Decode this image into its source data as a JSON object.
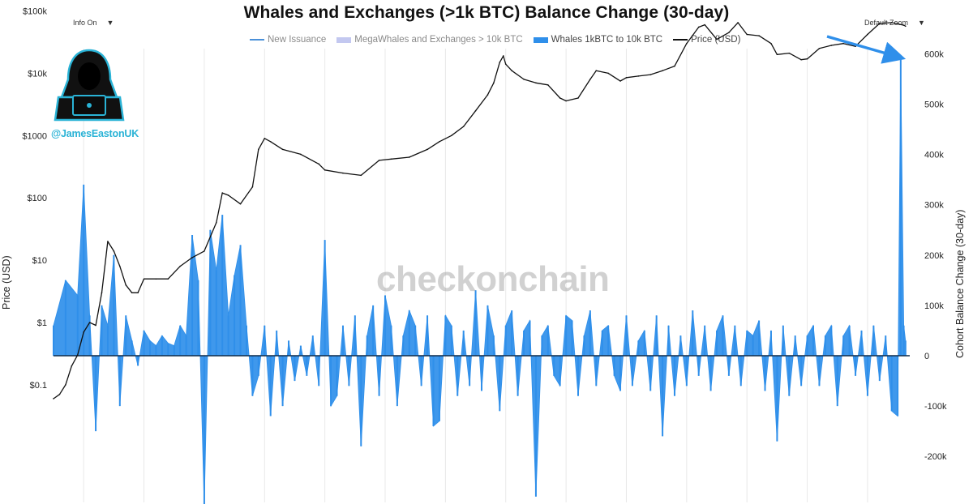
{
  "controls": {
    "info_label": "Info On",
    "zoom_label": "Default Zoom",
    "caret": "▼"
  },
  "chart_data": {
    "type": "area",
    "title": "Whales and Exchanges (>1k BTC) Balance Change (30-day)",
    "ylabel_left": "Price (USD)",
    "ylabel_right": "Cohort Balance Change (30-day)",
    "left_axis": {
      "scale": "log",
      "range": [
        0.04,
        500000
      ],
      "ticks": [
        {
          "label": "$0.1",
          "value": 0.1
        },
        {
          "label": "$1",
          "value": 1
        },
        {
          "label": "$10",
          "value": 10
        },
        {
          "label": "$100",
          "value": 100
        },
        {
          "label": "$1000",
          "value": 1000
        },
        {
          "label": "$10k",
          "value": 10000
        },
        {
          "label": "$100k",
          "value": 100000
        }
      ]
    },
    "right_axis": {
      "scale": "linear",
      "range": [
        -290000,
        610000
      ],
      "ticks": [
        {
          "label": "600k",
          "value": 600000
        },
        {
          "label": "500k",
          "value": 500000
        },
        {
          "label": "400k",
          "value": 400000
        },
        {
          "label": "300k",
          "value": 300000
        },
        {
          "label": "200k",
          "value": 200000
        },
        {
          "label": "100k",
          "value": 100000
        },
        {
          "label": "0",
          "value": 0
        },
        {
          "label": "-100k",
          "value": -100000
        },
        {
          "label": "-200k",
          "value": -200000
        }
      ]
    },
    "x_range": [
      2010.5,
      2024.7
    ],
    "grid": "vertical",
    "legend_position": "top-center",
    "legend": [
      {
        "name": "New Issuance",
        "color": "#4a90d9",
        "style": "line",
        "visible": false
      },
      {
        "name": "MegaWhales and Exchanges > 10k BTC",
        "color": "#c3c8f0",
        "style": "line",
        "visible": false
      },
      {
        "name": "Whales 1kBTC to 10k BTC",
        "color": "#2f8fea",
        "style": "area",
        "visible": true
      },
      {
        "name": "Price (USD)",
        "color": "#111111",
        "style": "line",
        "visible": true
      }
    ],
    "series": [
      {
        "name": "Whales 1kBTC to 10k BTC",
        "axis": "right",
        "color": "#2f8fea",
        "x": [
          2010.5,
          2010.7,
          2010.9,
          2011.0,
          2011.1,
          2011.2,
          2011.3,
          2011.4,
          2011.5,
          2011.6,
          2011.7,
          2011.8,
          2011.9,
          2012.0,
          2012.1,
          2012.2,
          2012.3,
          2012.4,
          2012.5,
          2012.6,
          2012.7,
          2012.8,
          2012.9,
          2013.0,
          2013.1,
          2013.2,
          2013.3,
          2013.4,
          2013.5,
          2013.6,
          2013.7,
          2013.8,
          2013.9,
          2014.0,
          2014.1,
          2014.2,
          2014.3,
          2014.4,
          2014.5,
          2014.6,
          2014.7,
          2014.8,
          2014.9,
          2015.0,
          2015.1,
          2015.2,
          2015.3,
          2015.4,
          2015.5,
          2015.6,
          2015.7,
          2015.8,
          2015.9,
          2016.0,
          2016.1,
          2016.2,
          2016.3,
          2016.4,
          2016.5,
          2016.6,
          2016.7,
          2016.8,
          2016.9,
          2017.0,
          2017.1,
          2017.2,
          2017.3,
          2017.4,
          2017.5,
          2017.6,
          2017.7,
          2017.8,
          2017.9,
          2018.0,
          2018.1,
          2018.2,
          2018.3,
          2018.4,
          2018.5,
          2018.6,
          2018.7,
          2018.8,
          2018.9,
          2019.0,
          2019.1,
          2019.2,
          2019.3,
          2019.4,
          2019.5,
          2019.6,
          2019.7,
          2019.8,
          2019.9,
          2020.0,
          2020.1,
          2020.2,
          2020.3,
          2020.4,
          2020.5,
          2020.6,
          2020.7,
          2020.8,
          2020.9,
          2021.0,
          2021.1,
          2021.2,
          2021.3,
          2021.4,
          2021.5,
          2021.6,
          2021.7,
          2021.8,
          2021.9,
          2022.0,
          2022.1,
          2022.2,
          2022.3,
          2022.4,
          2022.5,
          2022.6,
          2022.7,
          2022.8,
          2022.9,
          2023.0,
          2023.1,
          2023.2,
          2023.3,
          2023.4,
          2023.5,
          2023.6,
          2023.7,
          2023.8,
          2023.9,
          2024.0,
          2024.1,
          2024.2,
          2024.3,
          2024.4,
          2024.5,
          2024.55,
          2024.6,
          2024.63
        ],
        "values": [
          60000,
          150000,
          120000,
          340000,
          80000,
          -150000,
          100000,
          60000,
          200000,
          -100000,
          80000,
          30000,
          -20000,
          50000,
          30000,
          20000,
          40000,
          25000,
          20000,
          60000,
          40000,
          240000,
          150000,
          -300000,
          250000,
          170000,
          280000,
          80000,
          160000,
          220000,
          60000,
          -80000,
          -40000,
          60000,
          -120000,
          50000,
          -100000,
          30000,
          -50000,
          20000,
          -40000,
          40000,
          -60000,
          230000,
          -100000,
          -80000,
          60000,
          -60000,
          80000,
          -180000,
          40000,
          100000,
          -80000,
          120000,
          60000,
          -100000,
          40000,
          90000,
          60000,
          -60000,
          80000,
          -140000,
          -130000,
          80000,
          60000,
          -80000,
          50000,
          -60000,
          130000,
          -70000,
          100000,
          40000,
          -110000,
          60000,
          90000,
          -80000,
          50000,
          70000,
          -280000,
          40000,
          60000,
          -40000,
          -60000,
          80000,
          70000,
          -80000,
          40000,
          90000,
          -60000,
          50000,
          60000,
          -40000,
          -70000,
          80000,
          -60000,
          30000,
          50000,
          -70000,
          80000,
          -160000,
          60000,
          -80000,
          40000,
          -60000,
          90000,
          -40000,
          60000,
          -70000,
          50000,
          80000,
          -40000,
          60000,
          -60000,
          50000,
          40000,
          70000,
          -70000,
          50000,
          -170000,
          60000,
          -80000,
          40000,
          -60000,
          40000,
          60000,
          -60000,
          40000,
          60000,
          -100000,
          40000,
          60000,
          -40000,
          50000,
          -80000,
          60000,
          -50000,
          40000,
          -110000,
          -120000,
          590000,
          60000,
          30000
        ]
      },
      {
        "name": "Price (USD)",
        "axis": "left",
        "color": "#111111",
        "x": [
          2010.5,
          2010.6,
          2010.7,
          2010.8,
          2010.9,
          2011.0,
          2011.1,
          2011.2,
          2011.3,
          2011.4,
          2011.5,
          2011.6,
          2011.7,
          2011.8,
          2011.9,
          2012.0,
          2012.2,
          2012.4,
          2012.6,
          2012.8,
          2013.0,
          2013.2,
          2013.3,
          2013.4,
          2013.6,
          2013.8,
          2013.9,
          2014.0,
          2014.1,
          2014.3,
          2014.6,
          2014.9,
          2015.0,
          2015.3,
          2015.6,
          2015.9,
          2016.1,
          2016.4,
          2016.7,
          2016.9,
          2017.1,
          2017.3,
          2017.5,
          2017.7,
          2017.8,
          2017.9,
          2017.96,
          2018.0,
          2018.1,
          2018.3,
          2018.5,
          2018.7,
          2018.9,
          2019.0,
          2019.2,
          2019.4,
          2019.5,
          2019.7,
          2019.9,
          2020.0,
          2020.2,
          2020.4,
          2020.6,
          2020.8,
          2021.0,
          2021.2,
          2021.3,
          2021.5,
          2021.7,
          2021.85,
          2022.0,
          2022.2,
          2022.4,
          2022.5,
          2022.7,
          2022.9,
          2023.0,
          2023.2,
          2023.4,
          2023.6,
          2023.8,
          2024.0,
          2024.2,
          2024.4,
          2024.5,
          2024.6,
          2024.63
        ],
        "values": [
          0.06,
          0.07,
          0.1,
          0.2,
          0.3,
          0.7,
          1.0,
          0.9,
          3.0,
          20,
          14,
          8,
          4,
          3,
          3,
          5,
          5,
          5,
          8,
          11,
          14,
          40,
          120,
          110,
          80,
          150,
          600,
          900,
          800,
          600,
          500,
          350,
          280,
          250,
          230,
          400,
          420,
          450,
          600,
          800,
          1000,
          1400,
          2500,
          4500,
          7000,
          15000,
          19000,
          14000,
          11000,
          8000,
          7000,
          6500,
          4000,
          3600,
          4000,
          8000,
          11000,
          10000,
          7500,
          8500,
          9000,
          9500,
          11000,
          13000,
          30000,
          55000,
          60000,
          35000,
          45000,
          65000,
          42000,
          40000,
          30000,
          20000,
          21000,
          16500,
          17000,
          25000,
          28000,
          30000,
          27000,
          42000,
          63000,
          65000,
          62000,
          59000,
          57000
        ]
      }
    ],
    "annotations": [
      {
        "type": "arrow",
        "color": "#2f8fea",
        "target": "latest spike"
      }
    ]
  },
  "branding": {
    "handle": "@JamesEastonUK",
    "watermark": "checkonchain",
    "avatar_icon": "hooded-hacker-icon"
  },
  "colors": {
    "area": "#2f8fea",
    "price": "#111111",
    "handle": "#2ab3d6",
    "grid": "#e8e8e8"
  }
}
